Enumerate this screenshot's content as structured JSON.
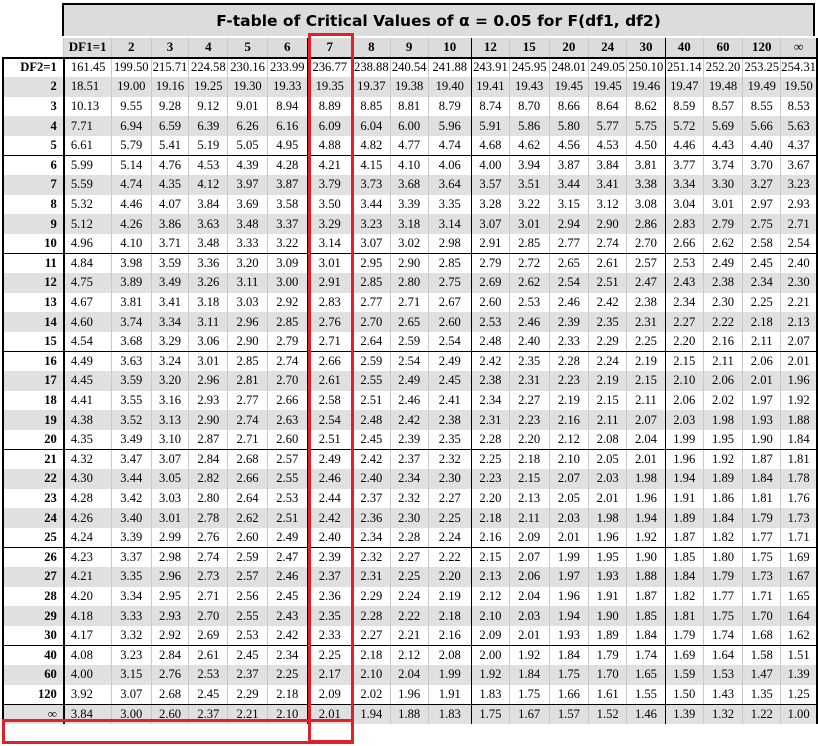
{
  "title": "F-table of Critical Values of α = 0.05 for F(df1, df2)",
  "df1_header": [
    "DF1=1",
    "2",
    "3",
    "4",
    "5",
    "6",
    "7",
    "8",
    "9",
    "10",
    "12",
    "15",
    "20",
    "24",
    "30",
    "40",
    "60",
    "120",
    "∞"
  ],
  "rows": [
    {
      "df2": "DF2=1",
      "values": [
        "161.45",
        "199.50",
        "215.71",
        "224.58",
        "230.16",
        "233.99",
        "236.77",
        "238.88",
        "240.54",
        "241.88",
        "243.91",
        "245.95",
        "248.01",
        "249.05",
        "250.10",
        "251.14",
        "252.20",
        "253.25",
        "254.31"
      ]
    },
    {
      "df2": "2",
      "values": [
        "18.51",
        "19.00",
        "19.16",
        "19.25",
        "19.30",
        "19.33",
        "19.35",
        "19.37",
        "19.38",
        "19.40",
        "19.41",
        "19.43",
        "19.45",
        "19.45",
        "19.46",
        "19.47",
        "19.48",
        "19.49",
        "19.50"
      ]
    },
    {
      "df2": "3",
      "values": [
        "10.13",
        "9.55",
        "9.28",
        "9.12",
        "9.01",
        "8.94",
        "8.89",
        "8.85",
        "8.81",
        "8.79",
        "8.74",
        "8.70",
        "8.66",
        "8.64",
        "8.62",
        "8.59",
        "8.57",
        "8.55",
        "8.53"
      ]
    },
    {
      "df2": "4",
      "values": [
        "7.71",
        "6.94",
        "6.59",
        "6.39",
        "6.26",
        "6.16",
        "6.09",
        "6.04",
        "6.00",
        "5.96",
        "5.91",
        "5.86",
        "5.80",
        "5.77",
        "5.75",
        "5.72",
        "5.69",
        "5.66",
        "5.63"
      ]
    },
    {
      "df2": "5",
      "values": [
        "6.61",
        "5.79",
        "5.41",
        "5.19",
        "5.05",
        "4.95",
        "4.88",
        "4.82",
        "4.77",
        "4.74",
        "4.68",
        "4.62",
        "4.56",
        "4.53",
        "4.50",
        "4.46",
        "4.43",
        "4.40",
        "4.37"
      ]
    },
    {
      "df2": "6",
      "values": [
        "5.99",
        "5.14",
        "4.76",
        "4.53",
        "4.39",
        "4.28",
        "4.21",
        "4.15",
        "4.10",
        "4.06",
        "4.00",
        "3.94",
        "3.87",
        "3.84",
        "3.81",
        "3.77",
        "3.74",
        "3.70",
        "3.67"
      ]
    },
    {
      "df2": "7",
      "values": [
        "5.59",
        "4.74",
        "4.35",
        "4.12",
        "3.97",
        "3.87",
        "3.79",
        "3.73",
        "3.68",
        "3.64",
        "3.57",
        "3.51",
        "3.44",
        "3.41",
        "3.38",
        "3.34",
        "3.30",
        "3.27",
        "3.23"
      ]
    },
    {
      "df2": "8",
      "values": [
        "5.32",
        "4.46",
        "4.07",
        "3.84",
        "3.69",
        "3.58",
        "3.50",
        "3.44",
        "3.39",
        "3.35",
        "3.28",
        "3.22",
        "3.15",
        "3.12",
        "3.08",
        "3.04",
        "3.01",
        "2.97",
        "2.93"
      ]
    },
    {
      "df2": "9",
      "values": [
        "5.12",
        "4.26",
        "3.86",
        "3.63",
        "3.48",
        "3.37",
        "3.29",
        "3.23",
        "3.18",
        "3.14",
        "3.07",
        "3.01",
        "2.94",
        "2.90",
        "2.86",
        "2.83",
        "2.79",
        "2.75",
        "2.71"
      ]
    },
    {
      "df2": "10",
      "values": [
        "4.96",
        "4.10",
        "3.71",
        "3.48",
        "3.33",
        "3.22",
        "3.14",
        "3.07",
        "3.02",
        "2.98",
        "2.91",
        "2.85",
        "2.77",
        "2.74",
        "2.70",
        "2.66",
        "2.62",
        "2.58",
        "2.54"
      ]
    },
    {
      "df2": "11",
      "values": [
        "4.84",
        "3.98",
        "3.59",
        "3.36",
        "3.20",
        "3.09",
        "3.01",
        "2.95",
        "2.90",
        "2.85",
        "2.79",
        "2.72",
        "2.65",
        "2.61",
        "2.57",
        "2.53",
        "2.49",
        "2.45",
        "2.40"
      ]
    },
    {
      "df2": "12",
      "values": [
        "4.75",
        "3.89",
        "3.49",
        "3.26",
        "3.11",
        "3.00",
        "2.91",
        "2.85",
        "2.80",
        "2.75",
        "2.69",
        "2.62",
        "2.54",
        "2.51",
        "2.47",
        "2.43",
        "2.38",
        "2.34",
        "2.30"
      ]
    },
    {
      "df2": "13",
      "values": [
        "4.67",
        "3.81",
        "3.41",
        "3.18",
        "3.03",
        "2.92",
        "2.83",
        "2.77",
        "2.71",
        "2.67",
        "2.60",
        "2.53",
        "2.46",
        "2.42",
        "2.38",
        "2.34",
        "2.30",
        "2.25",
        "2.21"
      ]
    },
    {
      "df2": "14",
      "values": [
        "4.60",
        "3.74",
        "3.34",
        "3.11",
        "2.96",
        "2.85",
        "2.76",
        "2.70",
        "2.65",
        "2.60",
        "2.53",
        "2.46",
        "2.39",
        "2.35",
        "2.31",
        "2.27",
        "2.22",
        "2.18",
        "2.13"
      ]
    },
    {
      "df2": "15",
      "values": [
        "4.54",
        "3.68",
        "3.29",
        "3.06",
        "2.90",
        "2.79",
        "2.71",
        "2.64",
        "2.59",
        "2.54",
        "2.48",
        "2.40",
        "2.33",
        "2.29",
        "2.25",
        "2.20",
        "2.16",
        "2.11",
        "2.07"
      ]
    },
    {
      "df2": "16",
      "values": [
        "4.49",
        "3.63",
        "3.24",
        "3.01",
        "2.85",
        "2.74",
        "2.66",
        "2.59",
        "2.54",
        "2.49",
        "2.42",
        "2.35",
        "2.28",
        "2.24",
        "2.19",
        "2.15",
        "2.11",
        "2.06",
        "2.01"
      ]
    },
    {
      "df2": "17",
      "values": [
        "4.45",
        "3.59",
        "3.20",
        "2.96",
        "2.81",
        "2.70",
        "2.61",
        "2.55",
        "2.49",
        "2.45",
        "2.38",
        "2.31",
        "2.23",
        "2.19",
        "2.15",
        "2.10",
        "2.06",
        "2.01",
        "1.96"
      ]
    },
    {
      "df2": "18",
      "values": [
        "4.41",
        "3.55",
        "3.16",
        "2.93",
        "2.77",
        "2.66",
        "2.58",
        "2.51",
        "2.46",
        "2.41",
        "2.34",
        "2.27",
        "2.19",
        "2.15",
        "2.11",
        "2.06",
        "2.02",
        "1.97",
        "1.92"
      ]
    },
    {
      "df2": "19",
      "values": [
        "4.38",
        "3.52",
        "3.13",
        "2.90",
        "2.74",
        "2.63",
        "2.54",
        "2.48",
        "2.42",
        "2.38",
        "2.31",
        "2.23",
        "2.16",
        "2.11",
        "2.07",
        "2.03",
        "1.98",
        "1.93",
        "1.88"
      ]
    },
    {
      "df2": "20",
      "values": [
        "4.35",
        "3.49",
        "3.10",
        "2.87",
        "2.71",
        "2.60",
        "2.51",
        "2.45",
        "2.39",
        "2.35",
        "2.28",
        "2.20",
        "2.12",
        "2.08",
        "2.04",
        "1.99",
        "1.95",
        "1.90",
        "1.84"
      ]
    },
    {
      "df2": "21",
      "values": [
        "4.32",
        "3.47",
        "3.07",
        "2.84",
        "2.68",
        "2.57",
        "2.49",
        "2.42",
        "2.37",
        "2.32",
        "2.25",
        "2.18",
        "2.10",
        "2.05",
        "2.01",
        "1.96",
        "1.92",
        "1.87",
        "1.81"
      ]
    },
    {
      "df2": "22",
      "values": [
        "4.30",
        "3.44",
        "3.05",
        "2.82",
        "2.66",
        "2.55",
        "2.46",
        "2.40",
        "2.34",
        "2.30",
        "2.23",
        "2.15",
        "2.07",
        "2.03",
        "1.98",
        "1.94",
        "1.89",
        "1.84",
        "1.78"
      ]
    },
    {
      "df2": "23",
      "values": [
        "4.28",
        "3.42",
        "3.03",
        "2.80",
        "2.64",
        "2.53",
        "2.44",
        "2.37",
        "2.32",
        "2.27",
        "2.20",
        "2.13",
        "2.05",
        "2.01",
        "1.96",
        "1.91",
        "1.86",
        "1.81",
        "1.76"
      ]
    },
    {
      "df2": "24",
      "values": [
        "4.26",
        "3.40",
        "3.01",
        "2.78",
        "2.62",
        "2.51",
        "2.42",
        "2.36",
        "2.30",
        "2.25",
        "2.18",
        "2.11",
        "2.03",
        "1.98",
        "1.94",
        "1.89",
        "1.84",
        "1.79",
        "1.73"
      ]
    },
    {
      "df2": "25",
      "values": [
        "4.24",
        "3.39",
        "2.99",
        "2.76",
        "2.60",
        "2.49",
        "2.40",
        "2.34",
        "2.28",
        "2.24",
        "2.16",
        "2.09",
        "2.01",
        "1.96",
        "1.92",
        "1.87",
        "1.82",
        "1.77",
        "1.71"
      ]
    },
    {
      "df2": "26",
      "values": [
        "4.23",
        "3.37",
        "2.98",
        "2.74",
        "2.59",
        "2.47",
        "2.39",
        "2.32",
        "2.27",
        "2.22",
        "2.15",
        "2.07",
        "1.99",
        "1.95",
        "1.90",
        "1.85",
        "1.80",
        "1.75",
        "1.69"
      ]
    },
    {
      "df2": "27",
      "values": [
        "4.21",
        "3.35",
        "2.96",
        "2.73",
        "2.57",
        "2.46",
        "2.37",
        "2.31",
        "2.25",
        "2.20",
        "2.13",
        "2.06",
        "1.97",
        "1.93",
        "1.88",
        "1.84",
        "1.79",
        "1.73",
        "1.67"
      ]
    },
    {
      "df2": "28",
      "values": [
        "4.20",
        "3.34",
        "2.95",
        "2.71",
        "2.56",
        "2.45",
        "2.36",
        "2.29",
        "2.24",
        "2.19",
        "2.12",
        "2.04",
        "1.96",
        "1.91",
        "1.87",
        "1.82",
        "1.77",
        "1.71",
        "1.65"
      ]
    },
    {
      "df2": "29",
      "values": [
        "4.18",
        "3.33",
        "2.93",
        "2.70",
        "2.55",
        "2.43",
        "2.35",
        "2.28",
        "2.22",
        "2.18",
        "2.10",
        "2.03",
        "1.94",
        "1.90",
        "1.85",
        "1.81",
        "1.75",
        "1.70",
        "1.64"
      ]
    },
    {
      "df2": "30",
      "values": [
        "4.17",
        "3.32",
        "2.92",
        "2.69",
        "2.53",
        "2.42",
        "2.33",
        "2.27",
        "2.21",
        "2.16",
        "2.09",
        "2.01",
        "1.93",
        "1.89",
        "1.84",
        "1.79",
        "1.74",
        "1.68",
        "1.62"
      ]
    },
    {
      "df2": "40",
      "values": [
        "4.08",
        "3.23",
        "2.84",
        "2.61",
        "2.45",
        "2.34",
        "2.25",
        "2.18",
        "2.12",
        "2.08",
        "2.00",
        "1.92",
        "1.84",
        "1.79",
        "1.74",
        "1.69",
        "1.64",
        "1.58",
        "1.51"
      ]
    },
    {
      "df2": "60",
      "values": [
        "4.00",
        "3.15",
        "2.76",
        "2.53",
        "2.37",
        "2.25",
        "2.17",
        "2.10",
        "2.04",
        "1.99",
        "1.92",
        "1.84",
        "1.75",
        "1.70",
        "1.65",
        "1.59",
        "1.53",
        "1.47",
        "1.39"
      ]
    },
    {
      "df2": "120",
      "values": [
        "3.92",
        "3.07",
        "2.68",
        "2.45",
        "2.29",
        "2.18",
        "2.09",
        "2.02",
        "1.96",
        "1.91",
        "1.83",
        "1.75",
        "1.66",
        "1.61",
        "1.55",
        "1.50",
        "1.43",
        "1.35",
        "1.25"
      ]
    },
    {
      "df2": "∞",
      "values": [
        "3.84",
        "3.00",
        "2.60",
        "2.37",
        "2.21",
        "2.10",
        "2.01",
        "1.94",
        "1.88",
        "1.83",
        "1.75",
        "1.67",
        "1.57",
        "1.52",
        "1.46",
        "1.39",
        "1.32",
        "1.22",
        "1.00"
      ]
    }
  ],
  "highlight_color": "#e0202a",
  "highlight": {
    "column": "7",
    "row": "∞"
  }
}
